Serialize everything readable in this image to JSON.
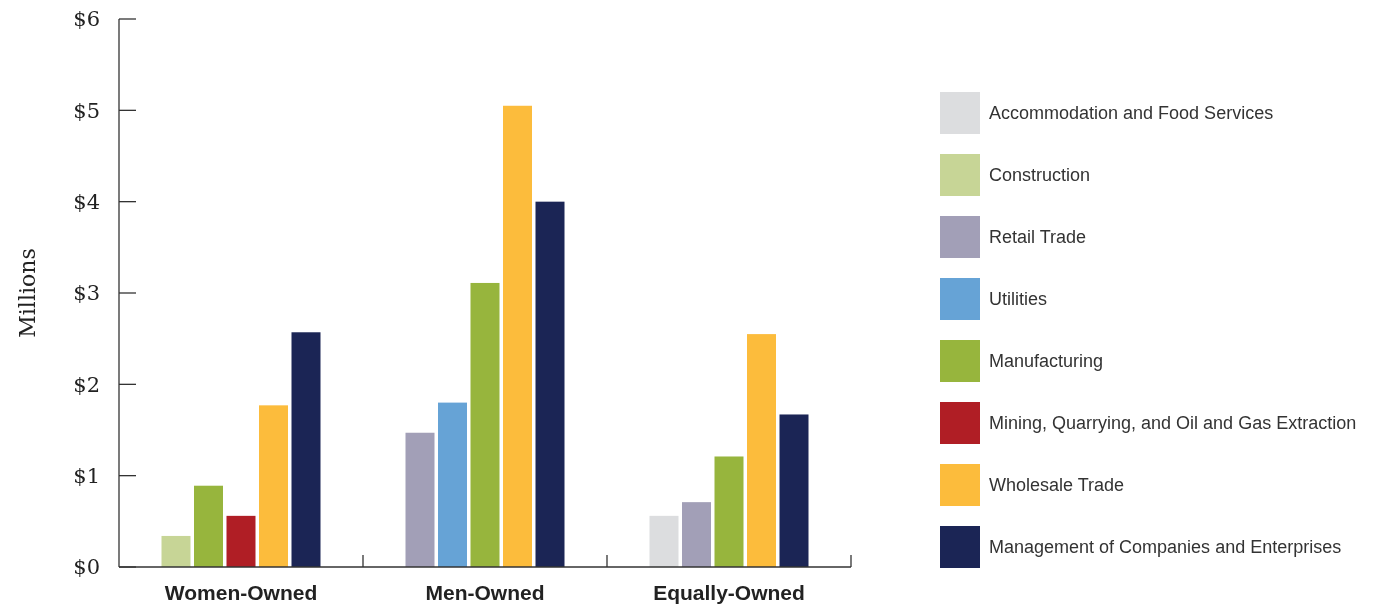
{
  "chart_data": {
    "type": "bar",
    "ylabel": "Millions",
    "categories": [
      "Women-Owned",
      "Men-Owned",
      "Equally-Owned"
    ],
    "series": [
      {
        "name": "Accommodation and Food Services",
        "color": "#dcdddf",
        "values": [
          null,
          null,
          0.56
        ]
      },
      {
        "name": "Construction",
        "color": "#c7d596",
        "values": [
          0.34,
          null,
          null
        ]
      },
      {
        "name": "Retail Trade",
        "color": "#a29fb7",
        "values": [
          null,
          1.47,
          0.71
        ]
      },
      {
        "name": "Utilities",
        "color": "#66a3d6",
        "values": [
          null,
          1.8,
          null
        ]
      },
      {
        "name": "Manufacturing",
        "color": "#97b53d",
        "values": [
          0.89,
          3.11,
          1.21
        ]
      },
      {
        "name": "Mining, Quarrying, and Oil and Gas Extraction",
        "color": "#b01e25",
        "values": [
          0.56,
          null,
          null
        ]
      },
      {
        "name": "Wholesale Trade",
        "color": "#fcbc3c",
        "values": [
          1.77,
          5.05,
          2.55
        ]
      },
      {
        "name": "Management of Companies and Enterprises",
        "color": "#1b2555",
        "values": [
          2.57,
          4.0,
          1.67
        ]
      }
    ],
    "ylim": [
      0,
      6
    ],
    "yticks": [
      {
        "value": 0,
        "label": "$0"
      },
      {
        "value": 1,
        "label": "$1"
      },
      {
        "value": 2,
        "label": "$2"
      },
      {
        "value": 3,
        "label": "$3"
      },
      {
        "value": 4,
        "label": "$4"
      },
      {
        "value": 5,
        "label": "$5"
      },
      {
        "value": 6,
        "label": "$6"
      }
    ],
    "grid": false,
    "legend": "right"
  }
}
